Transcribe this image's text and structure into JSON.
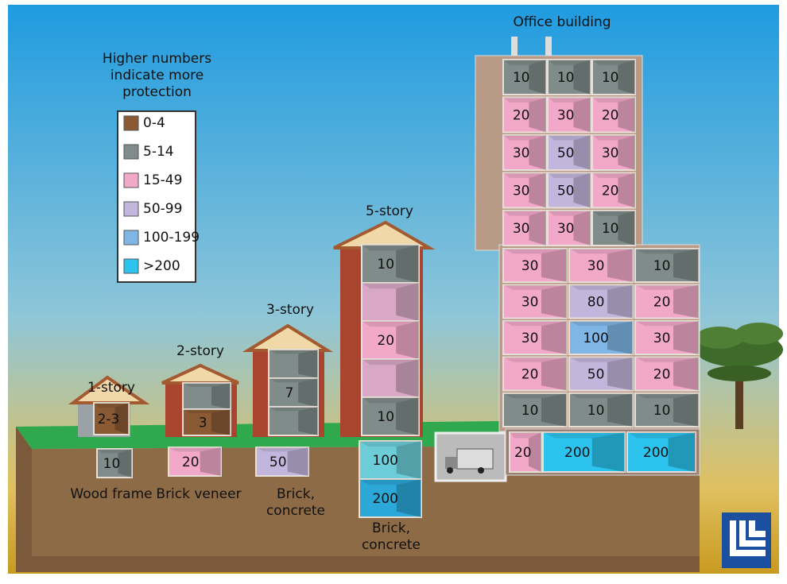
{
  "legend": {
    "title": "Higher numbers indicate more protection",
    "items": [
      {
        "label": "0-4",
        "color": "#8a5a34"
      },
      {
        "label": "5-14",
        "color": "#7f8c89"
      },
      {
        "label": "15-49",
        "color": "#f2a9c9"
      },
      {
        "label": "50-99",
        "color": "#c3b6dc"
      },
      {
        "label": "100-199",
        "color": "#7fb6e6"
      },
      {
        "label": ">200",
        "color": "#2cc3ee"
      }
    ]
  },
  "buildings": [
    {
      "label": "1-story",
      "material": "Wood frame",
      "floors": [
        {
          "label": "2-3",
          "color": "#8a5a34"
        }
      ],
      "basement": [
        {
          "label": "10",
          "color": "#7f8c89"
        }
      ]
    },
    {
      "label": "2-story",
      "material": "Brick veneer",
      "floors": [
        {
          "color": "#7f8c89"
        },
        {
          "label": "3",
          "color": "#8a5a34"
        }
      ],
      "basement": [
        {
          "label": "20",
          "color": "#f2a9c9"
        }
      ]
    },
    {
      "label": "3-story",
      "material": "Brick, concrete",
      "floors": [
        {
          "color": "#7f8c89"
        },
        {
          "label": "7",
          "color": "#7f8c89"
        },
        {
          "color": "#7f8c89"
        }
      ],
      "basement": [
        {
          "label": "50",
          "color": "#c3b6dc"
        }
      ]
    },
    {
      "label": "5-story",
      "material": "Brick, concrete",
      "floors": [
        {
          "label": "10",
          "color": "#7f8c89"
        },
        {
          "color": "#d9a8c6"
        },
        {
          "label": "20",
          "color": "#f2a9c9"
        },
        {
          "color": "#d9a8c6"
        },
        {
          "label": "10",
          "color": "#7f8c89"
        }
      ],
      "basement": [
        {
          "label": "100",
          "color": "#6ccdd8"
        },
        {
          "label": "200",
          "color": "#2ca8d8"
        }
      ]
    }
  ],
  "office": {
    "label": "Office building",
    "tower": [
      [
        {
          "label": "10",
          "color": "#7f8c89"
        },
        {
          "label": "10",
          "color": "#7f8c89"
        },
        {
          "label": "10",
          "color": "#7f8c89"
        }
      ],
      [
        {
          "label": "20",
          "color": "#f2a9c9"
        },
        {
          "label": "30",
          "color": "#f2a9c9"
        },
        {
          "label": "20",
          "color": "#f2a9c9"
        }
      ],
      [
        {
          "label": "30",
          "color": "#f2a9c9"
        },
        {
          "label": "50",
          "color": "#c3b6dc"
        },
        {
          "label": "30",
          "color": "#f2a9c9"
        }
      ],
      [
        {
          "label": "30",
          "color": "#f2a9c9"
        },
        {
          "label": "50",
          "color": "#c3b6dc"
        },
        {
          "label": "20",
          "color": "#f2a9c9"
        }
      ],
      [
        {
          "label": "30",
          "color": "#f2a9c9"
        },
        {
          "label": "30",
          "color": "#f2a9c9"
        },
        {
          "label": "10",
          "color": "#7f8c89"
        }
      ]
    ],
    "base": [
      [
        {
          "label": "30",
          "color": "#f2a9c9"
        },
        {
          "label": "30",
          "color": "#f2a9c9"
        },
        {
          "label": "10",
          "color": "#7f8c89"
        }
      ],
      [
        {
          "label": "30",
          "color": "#f2a9c9"
        },
        {
          "label": "80",
          "color": "#c3b6dc"
        },
        {
          "label": "20",
          "color": "#f2a9c9"
        }
      ],
      [
        {
          "label": "30",
          "color": "#f2a9c9"
        },
        {
          "label": "100",
          "color": "#7fb6e6"
        },
        {
          "label": "30",
          "color": "#f2a9c9"
        }
      ],
      [
        {
          "label": "20",
          "color": "#f2a9c9"
        },
        {
          "label": "50",
          "color": "#c3b6dc"
        },
        {
          "label": "20",
          "color": "#f2a9c9"
        }
      ],
      [
        {
          "label": "10",
          "color": "#7f8c89"
        },
        {
          "label": "10",
          "color": "#7f8c89"
        },
        {
          "label": "10",
          "color": "#7f8c89"
        }
      ]
    ],
    "basement": [
      {
        "label": "20",
        "color": "#f2a9c9"
      },
      {
        "label": "200",
        "color": "#2cc3ee"
      },
      {
        "label": "200",
        "color": "#2cc3ee"
      }
    ]
  }
}
